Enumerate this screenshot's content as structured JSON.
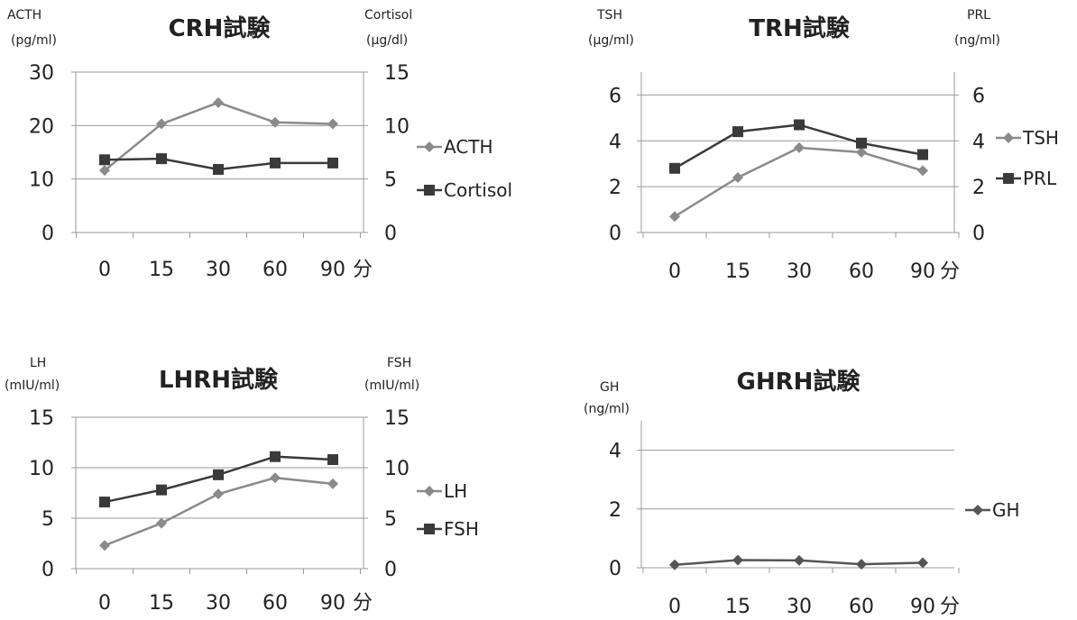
{
  "colors": {
    "light_series": "#8a8a8a",
    "dark_series": "#3a3a3a",
    "grid": "#9a9a9a"
  },
  "chart_data": [
    {
      "type": "line",
      "title": "CRH試験",
      "x_categories": [
        "0",
        "15",
        "30",
        "60",
        "90"
      ],
      "x_unit": "分",
      "left_axis": {
        "label_line1": "ACTH",
        "label_line2": "(pg/ml)",
        "ticks": [
          "0",
          "10",
          "20",
          "30"
        ],
        "range": [
          0,
          30
        ]
      },
      "right_axis": {
        "label_line1": "Cortisol",
        "label_line2": "(µg/dl)",
        "ticks": [
          "0",
          "5",
          "10",
          "15"
        ],
        "range": [
          0,
          15
        ]
      },
      "series": [
        {
          "name": "ACTH",
          "axis": "left",
          "marker": "diamond",
          "color": "#8a8a8a",
          "values": [
            11.6,
            20.3,
            24.3,
            20.6,
            20.3
          ]
        },
        {
          "name": "Cortisol",
          "axis": "right",
          "marker": "square",
          "color": "#3a3a3a",
          "values": [
            6.8,
            6.9,
            5.9,
            6.5,
            6.5
          ]
        }
      ]
    },
    {
      "type": "line",
      "title": "TRH試験",
      "x_categories": [
        "0",
        "15",
        "30",
        "60",
        "90"
      ],
      "x_unit": "分",
      "left_axis": {
        "label_line1": "TSH",
        "label_line2": "(µg/ml)",
        "ticks": [
          "0",
          "2",
          "4",
          "6"
        ],
        "range": [
          0,
          7
        ]
      },
      "right_axis": {
        "label_line1": "PRL",
        "label_line2": "(ng/ml)",
        "ticks": [
          "0",
          "2",
          "4",
          "6"
        ],
        "range": [
          0,
          7
        ]
      },
      "series": [
        {
          "name": "TSH",
          "axis": "left",
          "marker": "diamond",
          "color": "#8a8a8a",
          "values": [
            0.7,
            2.4,
            3.7,
            3.5,
            2.7
          ]
        },
        {
          "name": "PRL",
          "axis": "right",
          "marker": "square",
          "color": "#3a3a3a",
          "values": [
            2.8,
            4.4,
            4.7,
            3.9,
            3.4
          ]
        }
      ]
    },
    {
      "type": "line",
      "title": "LHRH試験",
      "x_categories": [
        "0",
        "15",
        "30",
        "60",
        "90"
      ],
      "x_unit": "分",
      "left_axis": {
        "label_line1": "LH",
        "label_line2": "(mIU/ml)",
        "ticks": [
          "0",
          "5",
          "10",
          "15"
        ],
        "range": [
          0,
          15
        ]
      },
      "right_axis": {
        "label_line1": "FSH",
        "label_line2": "(mIU/ml)",
        "ticks": [
          "0",
          "5",
          "10",
          "15"
        ],
        "range": [
          0,
          15
        ]
      },
      "series": [
        {
          "name": "LH",
          "axis": "left",
          "marker": "diamond",
          "color": "#8a8a8a",
          "values": [
            2.3,
            4.5,
            7.4,
            9.0,
            8.4
          ]
        },
        {
          "name": "FSH",
          "axis": "right",
          "marker": "square",
          "color": "#3a3a3a",
          "values": [
            6.6,
            7.8,
            9.3,
            11.1,
            10.8
          ]
        }
      ]
    },
    {
      "type": "line",
      "title": "GHRH試験",
      "x_categories": [
        "0",
        "15",
        "30",
        "60",
        "90"
      ],
      "x_unit": "分",
      "left_axis": {
        "label_line1": "GH",
        "label_line2": "(ng/ml)",
        "ticks": [
          "0",
          "2",
          "4"
        ],
        "range": [
          0,
          5
        ]
      },
      "right_axis": null,
      "series": [
        {
          "name": "GH",
          "axis": "left",
          "marker": "diamond",
          "color": "#555555",
          "values": [
            0.1,
            0.26,
            0.25,
            0.12,
            0.17
          ]
        }
      ]
    }
  ]
}
